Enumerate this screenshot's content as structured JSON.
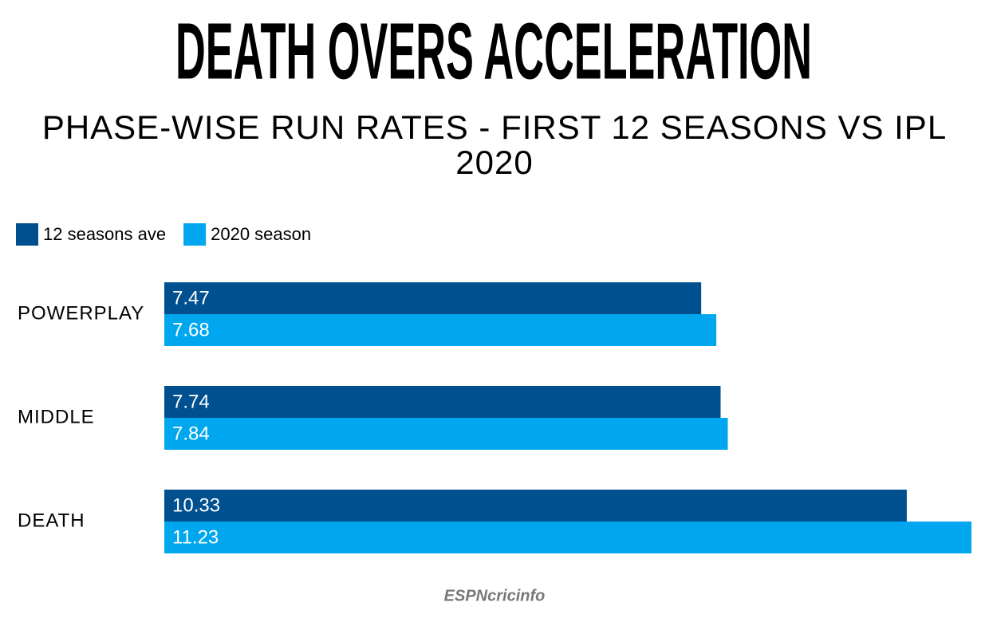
{
  "chart_data": {
    "type": "bar",
    "orientation": "horizontal",
    "title": "DEATH OVERS ACCELERATION",
    "subtitle": "PHASE-WISE RUN RATES - FIRST 12 SEASONS VS IPL 2020",
    "categories": [
      "POWERPLAY",
      "MIDDLE",
      "DEATH"
    ],
    "series": [
      {
        "name": "12 seasons ave",
        "color": "#004f8f",
        "values": [
          7.47,
          7.74,
          10.33
        ]
      },
      {
        "name": "2020 season",
        "color": "#00a7ef",
        "values": [
          7.68,
          7.84,
          11.23
        ]
      }
    ],
    "legend": "top-left",
    "logo": "ESPNcricinfo"
  }
}
